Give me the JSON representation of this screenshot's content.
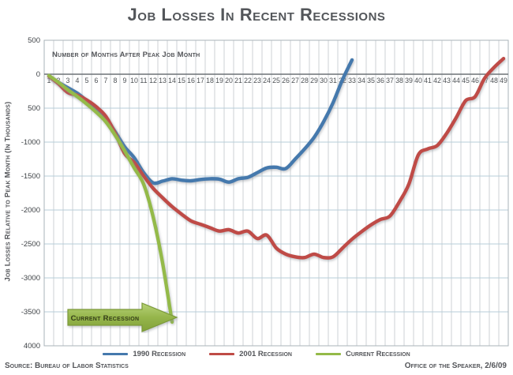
{
  "title": "Job Losses In Recent Recessions",
  "y_axis_title": "Job Losses Relative to Peak Month (In Thousands)",
  "annotations": {
    "x_axis_note": "Number of Months After Peak Job Month",
    "arrow_label": "Current Recession"
  },
  "legend": {
    "items": [
      {
        "label": "1990 Recession",
        "color": "#4579ad"
      },
      {
        "label": "2001 Recession",
        "color": "#bf4b46"
      },
      {
        "label": "Current Recession",
        "color": "#94ba48"
      }
    ]
  },
  "footer": {
    "source": "Source: Bureau of Labor Statistics",
    "credit": "Office of the Speaker, 2/6/09"
  },
  "chart_data": {
    "type": "line",
    "title": "Job Losses In Recent Recessions",
    "xlabel": "Number of Months After Peak Job Month",
    "ylabel": "Job Losses Relative to Peak Month (In Thousands)",
    "units": "thousands of jobs",
    "ylim": [
      -4000,
      500
    ],
    "grid": true,
    "legend_position": "bottom",
    "x_ticks": [
      1,
      2,
      3,
      4,
      5,
      6,
      7,
      8,
      9,
      10,
      11,
      12,
      13,
      14,
      15,
      16,
      17,
      18,
      19,
      20,
      21,
      22,
      23,
      24,
      25,
      26,
      27,
      28,
      29,
      30,
      31,
      32,
      33,
      34,
      35,
      36,
      37,
      38,
      39,
      40,
      41,
      42,
      43,
      44,
      45,
      46,
      47,
      48,
      49
    ],
    "y_ticks": [
      {
        "label": "500",
        "value": 500
      },
      {
        "label": "0",
        "value": 0
      },
      {
        "label": "500",
        "value": -500
      },
      {
        "label": "-1000",
        "value": -1000
      },
      {
        "label": "-1500",
        "value": -1500
      },
      {
        "label": "-2000",
        "value": -2000
      },
      {
        "label": "-2500",
        "value": -2500
      },
      {
        "label": "-3000",
        "value": -3000
      },
      {
        "label": "-3500",
        "value": -3500
      },
      {
        "label": "4000",
        "value": -4000
      }
    ],
    "series": [
      {
        "name": "1990 Recession",
        "color": "#4579ad",
        "start_month": 1,
        "values": [
          -30,
          -120,
          -200,
          -280,
          -390,
          -500,
          -650,
          -850,
          -1070,
          -1230,
          -1450,
          -1600,
          -1575,
          -1540,
          -1560,
          -1570,
          -1550,
          -1540,
          -1545,
          -1590,
          -1540,
          -1520,
          -1450,
          -1380,
          -1370,
          -1390,
          -1250,
          -1100,
          -930,
          -700,
          -420,
          -80,
          210
        ]
      },
      {
        "name": "2001 Recession",
        "color": "#bf4b46",
        "start_month": 1,
        "values": [
          -30,
          -140,
          -270,
          -310,
          -380,
          -480,
          -620,
          -870,
          -1170,
          -1300,
          -1500,
          -1680,
          -1820,
          -1950,
          -2060,
          -2160,
          -2210,
          -2260,
          -2310,
          -2290,
          -2340,
          -2310,
          -2420,
          -2370,
          -2560,
          -2650,
          -2690,
          -2700,
          -2650,
          -2700,
          -2690,
          -2560,
          -2430,
          -2320,
          -2220,
          -2140,
          -2090,
          -1880,
          -1620,
          -1190,
          -1100,
          -1050,
          -870,
          -640,
          -390,
          -330,
          -60,
          100,
          230
        ]
      },
      {
        "name": "Current Recession",
        "color": "#94ba48",
        "start_month": 1,
        "values": [
          -20,
          -120,
          -230,
          -330,
          -440,
          -560,
          -700,
          -900,
          -1130,
          -1380,
          -1620,
          -2100,
          -2780,
          -3650
        ]
      }
    ]
  }
}
